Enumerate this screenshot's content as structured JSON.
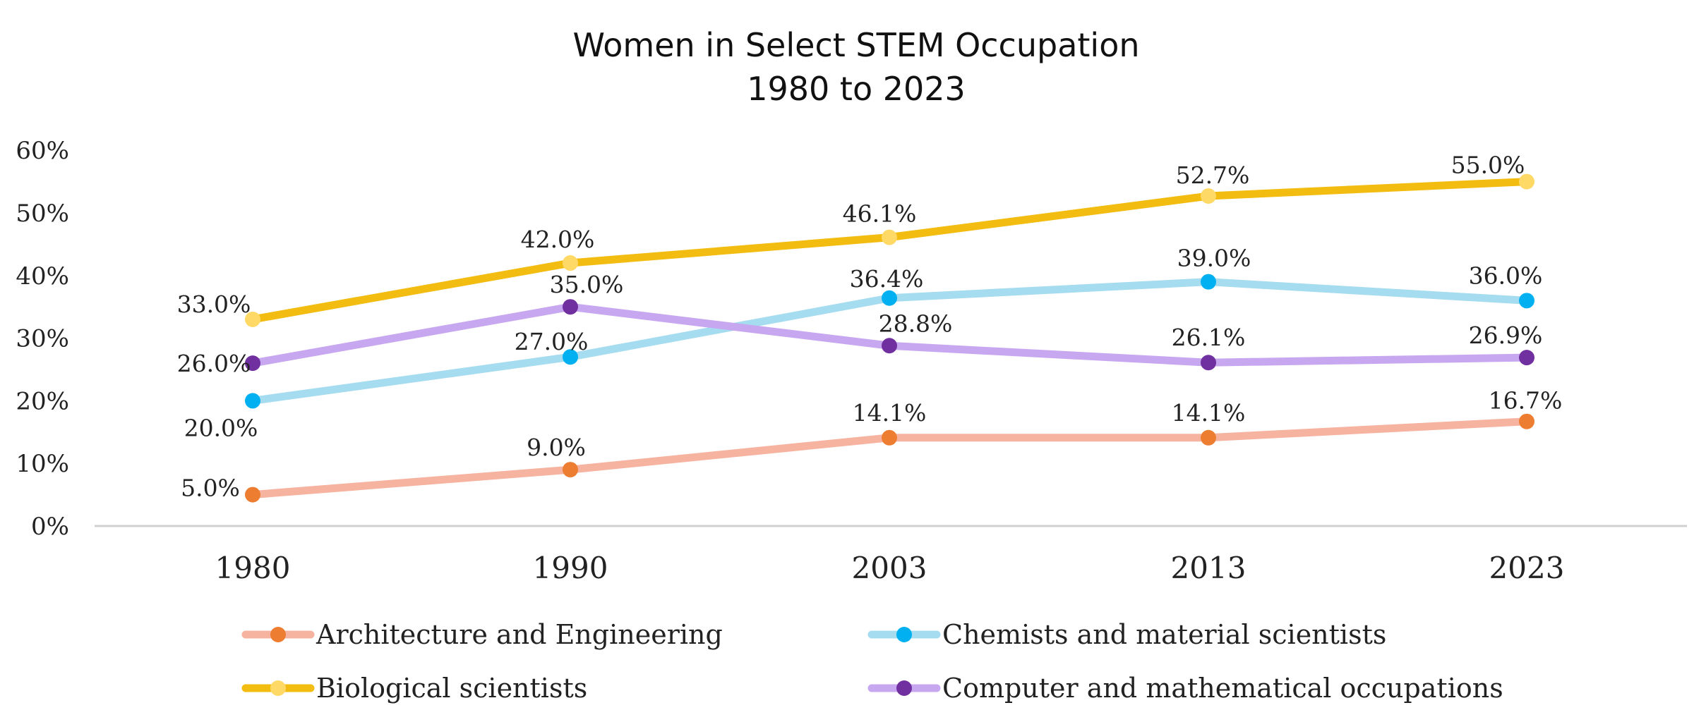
{
  "chart_data": {
    "type": "line",
    "title": [
      "Women in Select STEM Occupation",
      "1980 to 2023"
    ],
    "categories": [
      "1980",
      "1990",
      "2003",
      "2013",
      "2023"
    ],
    "y_ticks": [
      "0%",
      "10%",
      "20%",
      "30%",
      "40%",
      "50%",
      "60%"
    ],
    "ylim": [
      0,
      60
    ],
    "grid": false,
    "legend_position": "bottom",
    "series": [
      {
        "name": "Architecture and Engineering",
        "values": [
          5.0,
          9.0,
          14.1,
          14.1,
          16.7
        ],
        "labels": [
          "5.0%",
          "9.0%",
          "14.1%",
          "14.1%",
          "16.7%"
        ],
        "line_color": "#F6B3A0",
        "marker_color": "#ED7D31"
      },
      {
        "name": "Chemists and material scientists",
        "values": [
          20.0,
          27.0,
          36.4,
          39.0,
          36.0
        ],
        "labels": [
          "20.0%",
          "27.0%",
          "36.4%",
          "39.0%",
          "36.0%"
        ],
        "line_color": "#A6DCEF",
        "marker_color": "#00B0F0"
      },
      {
        "name": "Biological scientists",
        "values": [
          33.0,
          42.0,
          46.1,
          52.7,
          55.0
        ],
        "labels": [
          "33.0%",
          "42.0%",
          "46.1%",
          "52.7%",
          "55.0%"
        ],
        "line_color": "#F2BC10",
        "marker_color": "#FFD966"
      },
      {
        "name": "Computer and mathematical occupations",
        "values": [
          26.0,
          35.0,
          28.8,
          26.1,
          26.9
        ],
        "labels": [
          "26.0%",
          "35.0%",
          "28.8%",
          "26.1%",
          "26.9%"
        ],
        "line_color": "#C7A8F0",
        "marker_color": "#7030A0"
      }
    ],
    "legend_order": [
      0,
      1,
      2,
      3
    ]
  }
}
